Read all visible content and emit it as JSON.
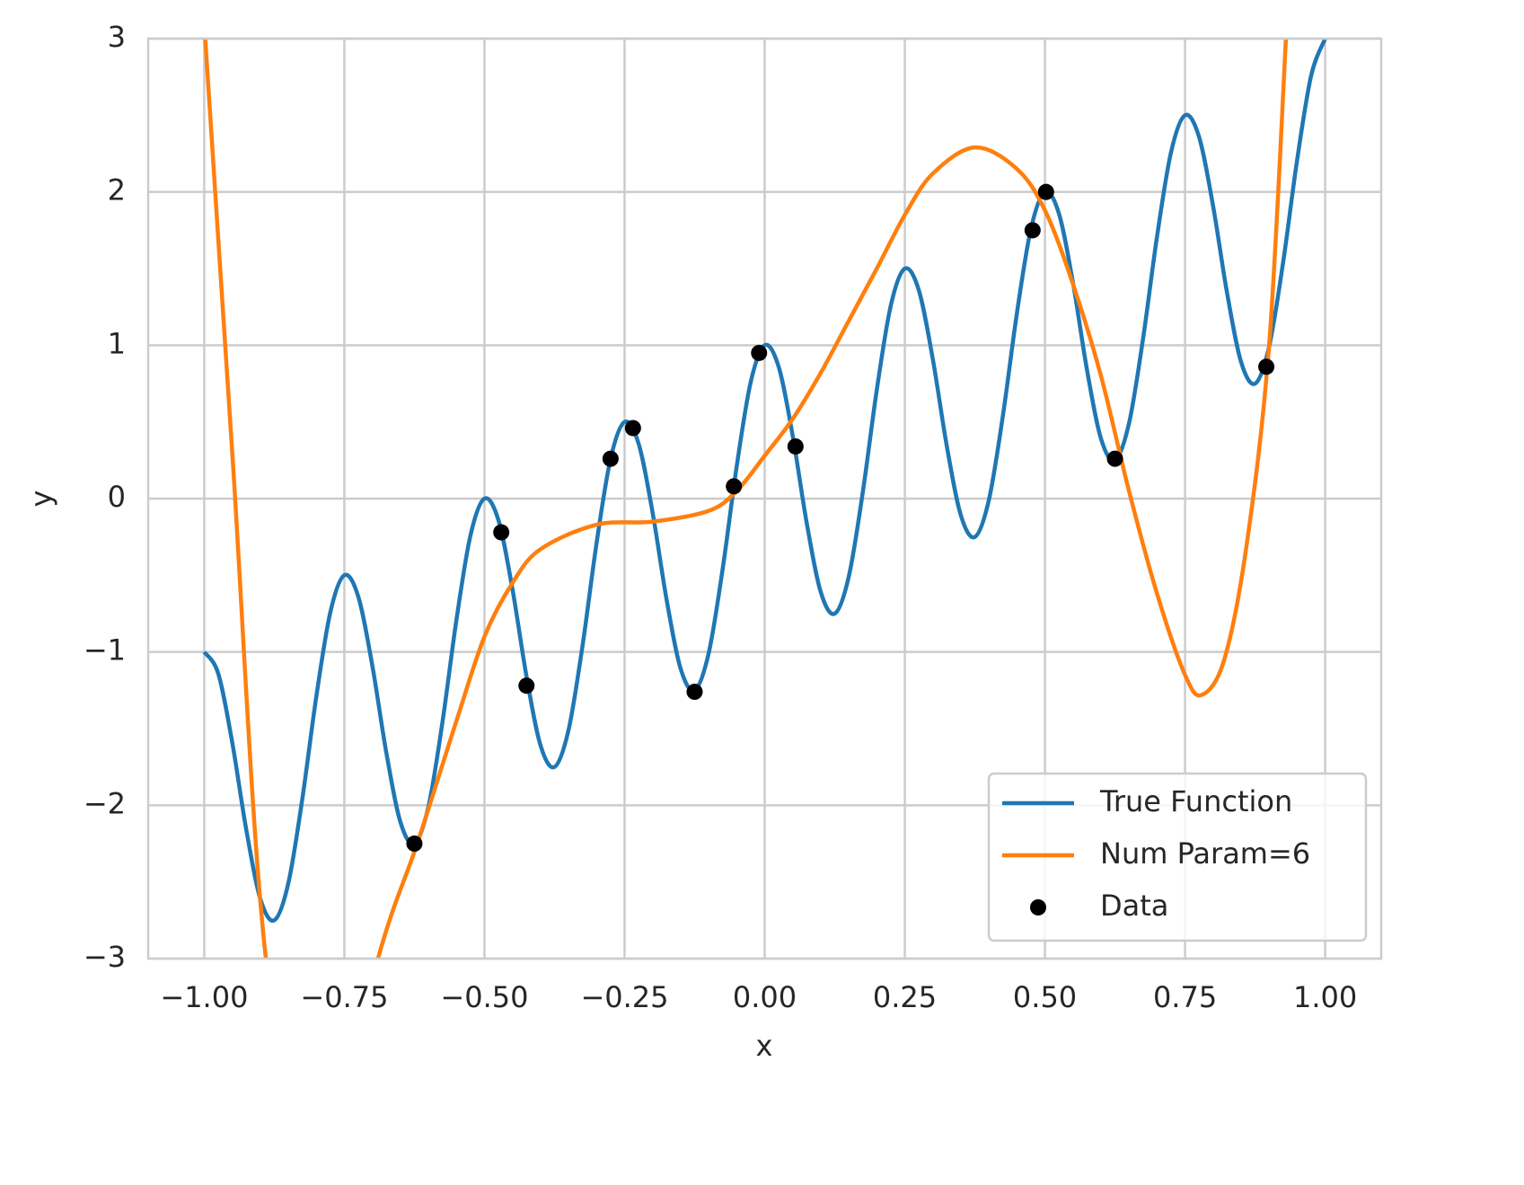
{
  "chart_data": {
    "type": "line",
    "xlabel": "x",
    "ylabel": "y",
    "xlim": [
      -1.1,
      1.1
    ],
    "ylim": [
      -3,
      3
    ],
    "xticks": [
      {
        "value": -1,
        "label": "−1.00"
      },
      {
        "value": -0.75,
        "label": "−0.75"
      },
      {
        "value": -0.5,
        "label": "−0.50"
      },
      {
        "value": -0.25,
        "label": "−0.25"
      },
      {
        "value": 0,
        "label": "0.00"
      },
      {
        "value": 0.25,
        "label": "0.25"
      },
      {
        "value": 0.5,
        "label": "0.50"
      },
      {
        "value": 0.75,
        "label": "0.75"
      },
      {
        "value": 1,
        "label": "1.00"
      }
    ],
    "yticks": [
      {
        "value": -3,
        "label": "−3"
      },
      {
        "value": -2,
        "label": "−2"
      },
      {
        "value": -1,
        "label": "−1"
      },
      0,
      1,
      2,
      3
    ],
    "grid": true,
    "legend": "lower right",
    "series": [
      {
        "name": "True Function",
        "color": "#1f77b4",
        "type": "line",
        "x": [
          -1,
          -0.975,
          -0.95,
          -0.925,
          -0.9,
          -0.875,
          -0.85,
          -0.825,
          -0.8,
          -0.775,
          -0.75,
          -0.725,
          -0.7,
          -0.675,
          -0.65,
          -0.625,
          -0.6,
          -0.575,
          -0.55,
          -0.525,
          -0.5,
          -0.475,
          -0.45,
          -0.425,
          -0.4,
          -0.375,
          -0.35,
          -0.325,
          -0.3,
          -0.275,
          -0.25,
          -0.225,
          -0.2,
          -0.175,
          -0.15,
          -0.125,
          -0.1,
          -0.075,
          -0.05,
          -0.025,
          0,
          0.025,
          0.05,
          0.075,
          0.1,
          0.125,
          0.15,
          0.175,
          0.2,
          0.225,
          0.25,
          0.275,
          0.3,
          0.325,
          0.35,
          0.375,
          0.4,
          0.425,
          0.45,
          0.475,
          0.5,
          0.525,
          0.55,
          0.575,
          0.6,
          0.625,
          0.65,
          0.675,
          0.7,
          0.725,
          0.75,
          0.775,
          0.8,
          0.825,
          0.85,
          0.875,
          0.9,
          0.925,
          0.95,
          0.975,
          1
        ],
        "values": [
          -1,
          -1.141,
          -1.591,
          -2.159,
          -2.609,
          -2.75,
          -2.509,
          -1.959,
          -1.291,
          -0.741,
          -0.5,
          -0.641,
          -1.091,
          -1.659,
          -2.109,
          -2.25,
          -2.009,
          -1.459,
          -0.791,
          -0.241,
          0,
          -0.141,
          -0.591,
          -1.159,
          -1.609,
          -1.75,
          -1.509,
          -0.959,
          -0.291,
          0.259,
          0.5,
          0.359,
          -0.091,
          -0.659,
          -1.109,
          -1.25,
          -1.009,
          -0.459,
          0.209,
          0.759,
          1,
          0.859,
          0.409,
          -0.159,
          -0.609,
          -0.75,
          -0.509,
          0.041,
          0.709,
          1.259,
          1.5,
          1.359,
          0.909,
          0.341,
          -0.109,
          -0.25,
          -0.009,
          0.541,
          1.209,
          1.759,
          2,
          1.859,
          1.409,
          0.841,
          0.391,
          0.25,
          0.491,
          1.041,
          1.709,
          2.259,
          2.5,
          2.359,
          1.909,
          1.341,
          0.891,
          0.75,
          0.991,
          1.541,
          2.209,
          2.759,
          3
        ]
      },
      {
        "name": "Num Param=6",
        "color": "#ff7f0e",
        "type": "line",
        "x": [
          -1,
          -0.95,
          -0.89,
          -0.8,
          -0.69,
          -0.62,
          -0.55,
          -0.5,
          -0.45,
          -0.4,
          -0.3,
          -0.2,
          -0.1,
          -0.05,
          0,
          0.05,
          0.1,
          0.15,
          0.2,
          0.25,
          0.3,
          0.375,
          0.45,
          0.5,
          0.55,
          0.6,
          0.65,
          0.7,
          0.75,
          0.78,
          0.82,
          0.86,
          0.9,
          0.93
        ],
        "values": [
          3.1,
          0.3,
          -3.0,
          -4.6,
          -3.0,
          -2.25,
          -1.45,
          -0.9,
          -0.55,
          -0.33,
          -0.17,
          -0.15,
          -0.08,
          0.05,
          0.28,
          0.52,
          0.82,
          1.16,
          1.5,
          1.85,
          2.12,
          2.29,
          2.15,
          1.88,
          1.4,
          0.8,
          0.05,
          -0.62,
          -1.15,
          -1.28,
          -1.05,
          -0.3,
          1.0,
          3.0
        ]
      },
      {
        "name": "Data",
        "color": "#000000",
        "type": "scatter",
        "x": [
          -0.625,
          -0.47,
          -0.425,
          -0.275,
          -0.235,
          -0.125,
          -0.055,
          -0.01,
          0.055,
          0.478,
          0.502,
          0.625,
          0.895
        ],
        "values": [
          -2.25,
          -0.22,
          -1.22,
          0.26,
          0.46,
          -1.26,
          0.08,
          0.95,
          0.34,
          1.75,
          2.0,
          0.26,
          0.86
        ]
      }
    ]
  }
}
